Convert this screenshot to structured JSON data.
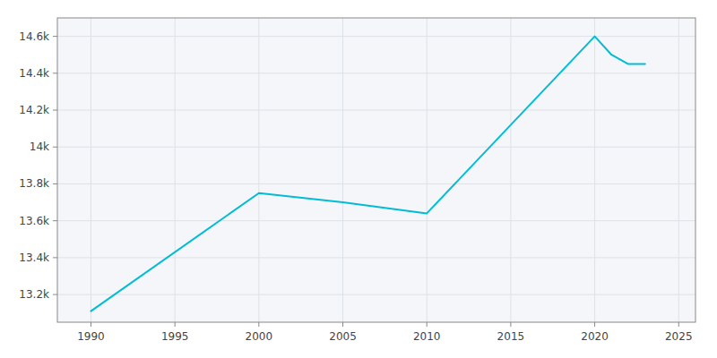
{
  "chart_data": {
    "type": "line",
    "x": [
      1990,
      2000,
      2005,
      2010,
      2020,
      2021,
      2022,
      2023
    ],
    "values": [
      13110,
      13750,
      13700,
      13640,
      14600,
      14500,
      14450,
      14450
    ],
    "color": "#00bcd4",
    "xlim": [
      1988,
      2026
    ],
    "ylim": [
      13050,
      14700
    ],
    "xticks": [
      1990,
      1995,
      2000,
      2005,
      2010,
      2015,
      2020,
      2025
    ],
    "yticks": [
      {
        "value": 13200,
        "label": "13.2k"
      },
      {
        "value": 13400,
        "label": "13.4k"
      },
      {
        "value": 13600,
        "label": "13.6k"
      },
      {
        "value": 13800,
        "label": "13.8k"
      },
      {
        "value": 14000,
        "label": "14k"
      },
      {
        "value": 14200,
        "label": "14.2k"
      },
      {
        "value": 14400,
        "label": "14.4k"
      },
      {
        "value": 14600,
        "label": "14.6k"
      }
    ],
    "grid": true
  }
}
